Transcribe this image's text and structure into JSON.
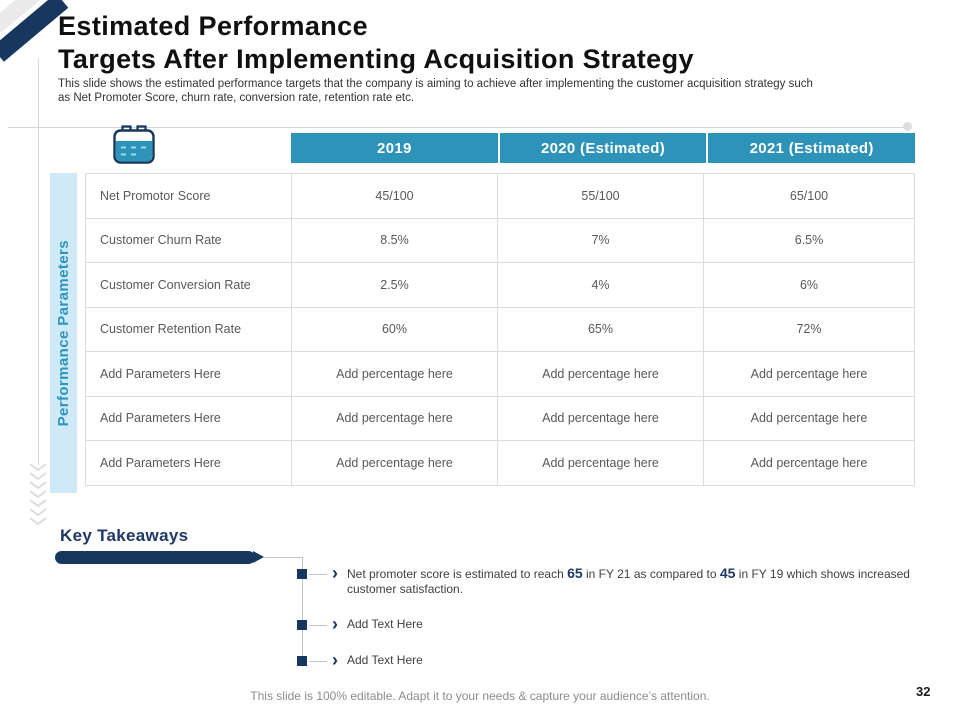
{
  "slide": {
    "title_line1": "Estimated Performance",
    "title_line2": "Targets After Implementing Acquisition Strategy",
    "subtitle": "This slide shows the estimated performance targets that the company is aiming to achieve after implementing the customer acquisition strategy such as Net Promoter Score, churn rate, conversion rate, retention rate etc.",
    "footer": "This slide is 100% editable. Adapt it to your needs & capture your audience’s attention.",
    "page_number": "32"
  },
  "table": {
    "side_label": "Performance Parameters",
    "columns": [
      "2019",
      "2020 (Estimated)",
      "2021 (Estimated)"
    ],
    "rows": [
      {
        "label": "Net Promotor Score",
        "values": [
          "45/100",
          "55/100",
          "65/100"
        ]
      },
      {
        "label": "Customer Churn Rate",
        "values": [
          "8.5%",
          "7%",
          "6.5%"
        ]
      },
      {
        "label": "Customer Conversion Rate",
        "values": [
          "2.5%",
          "4%",
          "6%"
        ]
      },
      {
        "label": "Customer Retention Rate",
        "values": [
          "60%",
          "65%",
          "72%"
        ]
      },
      {
        "label": "Add Parameters Here",
        "values": [
          "Add percentage here",
          "Add percentage here",
          "Add percentage here"
        ]
      },
      {
        "label": "Add Parameters Here",
        "values": [
          "Add percentage here",
          "Add percentage here",
          "Add percentage here"
        ]
      },
      {
        "label": "Add Parameters Here",
        "values": [
          "Add percentage here",
          "Add percentage here",
          "Add percentage here"
        ]
      }
    ]
  },
  "takeaways": {
    "heading": "Key Takeaways",
    "items": [
      {
        "segments": [
          {
            "text": "Net promoter score is estimated to reach ",
            "bold": false
          },
          {
            "text": "65",
            "bold": true
          },
          {
            "text": " in FY 21 as compared to ",
            "bold": false
          },
          {
            "text": "45",
            "bold": true
          },
          {
            "text": " in FY 19 which shows increased customer satisfaction.",
            "bold": false
          }
        ]
      },
      {
        "segments": [
          {
            "text": "Add Text Here",
            "bold": false
          }
        ]
      },
      {
        "segments": [
          {
            "text": "Add Text Here",
            "bold": false
          }
        ]
      }
    ]
  },
  "icons": {
    "table_icon": "calendar-icon",
    "bullet_icon": "chevron-right-icon",
    "left_margin_icon": "chevron-stack-icon"
  },
  "colors": {
    "accent_teal": "#2E93B9",
    "navy": "#17375E",
    "heading_blue": "#1F3864",
    "band_blue": "#CFE9F6"
  }
}
